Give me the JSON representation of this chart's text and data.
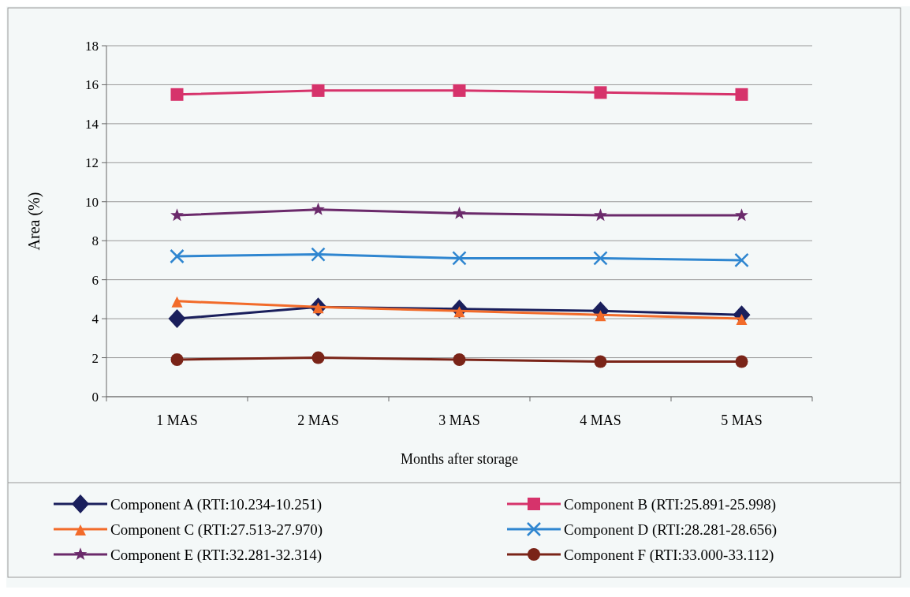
{
  "chart_data": {
    "type": "line",
    "xlabel": "Months after storage",
    "ylabel": "Area (%)",
    "categories": [
      "1 MAS",
      "2 MAS",
      "3 MAS",
      "4 MAS",
      "5 MAS"
    ],
    "series": [
      {
        "name": "Component A (RTI:10.234-10.251)",
        "color": "#1a1f5c",
        "marker": "diamond",
        "values": [
          4.0,
          4.6,
          4.5,
          4.4,
          4.2
        ]
      },
      {
        "name": "Component B (RTI:25.891-25.998)",
        "color": "#d6336b",
        "marker": "square",
        "values": [
          15.5,
          15.7,
          15.7,
          15.6,
          15.5
        ]
      },
      {
        "name": "Component C (RTI:27.513-27.970)",
        "color": "#f26b2a",
        "marker": "triangle",
        "values": [
          4.9,
          4.6,
          4.4,
          4.2,
          4.0
        ]
      },
      {
        "name": "Component D (RTI:28.281-28.656)",
        "color": "#2f86d0",
        "marker": "cross",
        "values": [
          7.2,
          7.3,
          7.1,
          7.1,
          7.0
        ]
      },
      {
        "name": "Component E (RTI:32.281-32.314)",
        "color": "#6b2a6b",
        "marker": "star",
        "values": [
          9.3,
          9.6,
          9.4,
          9.3,
          9.3
        ]
      },
      {
        "name": "Component F (RTI:33.000-33.112)",
        "color": "#7a2418",
        "marker": "circle",
        "values": [
          1.9,
          2.0,
          1.9,
          1.8,
          1.8
        ]
      }
    ],
    "ylim": [
      0,
      18
    ],
    "yticks": [
      0,
      2,
      4,
      6,
      8,
      10,
      12,
      14,
      16,
      18
    ],
    "grid": "y",
    "legend": "bottom",
    "line_style": "solid"
  }
}
